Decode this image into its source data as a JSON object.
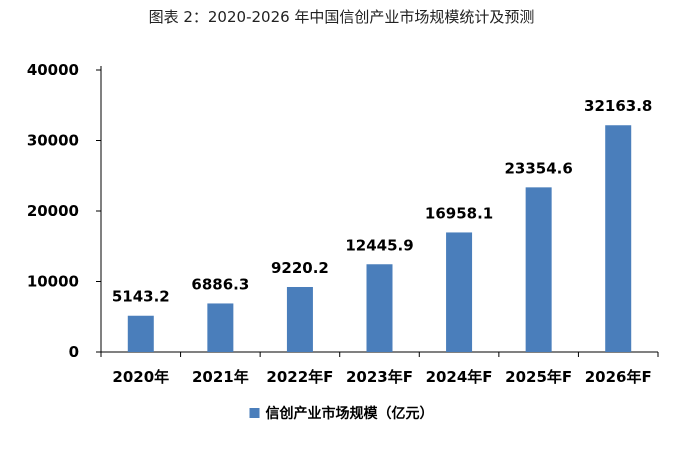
{
  "chart_data": {
    "type": "bar",
    "title": "图表 2：2020-2026 年中国信创产业市场规模统计及预测",
    "categories": [
      "2020年",
      "2021年",
      "2022年F",
      "2023年F",
      "2024年F",
      "2025年F",
      "2026年F"
    ],
    "series": [
      {
        "name": "信创产业市场规模（亿元）",
        "values": [
          5143.2,
          6886.3,
          9220.2,
          12445.9,
          16958.1,
          23354.6,
          32163.8
        ],
        "labels": [
          "5143.2",
          "6886.3",
          "9220.2",
          "12445.9",
          "16958.1",
          "23354.6",
          "32163.8"
        ]
      }
    ],
    "yticks": [
      0,
      10000,
      20000,
      30000,
      40000
    ],
    "ylim": [
      0,
      40000
    ],
    "grid": false,
    "legend_position": "bottom",
    "colors": {
      "bar": "#4a7ebb",
      "axis": "#000000"
    }
  }
}
